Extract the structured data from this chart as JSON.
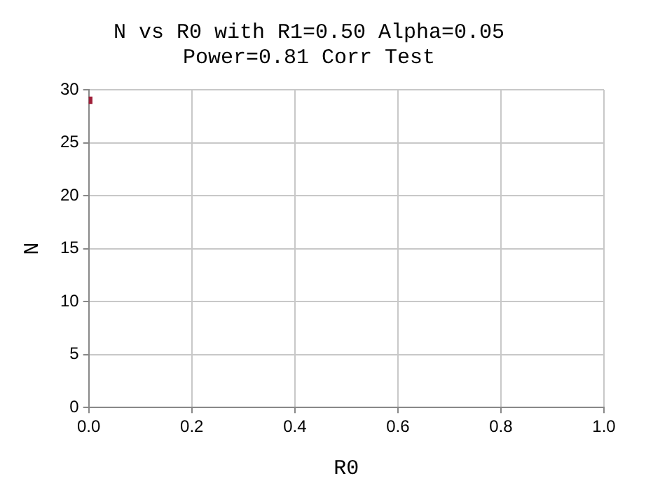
{
  "chart_data": {
    "type": "scatter",
    "title": "N vs R0 with R1=0.50 Alpha=0.05",
    "subtitle": "Power=0.81 Corr Test",
    "xlabel": "R0",
    "ylabel": "N",
    "series": [
      {
        "color": "#a0203a",
        "x": [
          0
        ],
        "values": [
          29
        ]
      }
    ],
    "xlim": [
      0,
      1
    ],
    "xticks": [
      {
        "value": 0,
        "label": "0.0"
      },
      {
        "value": 0.2,
        "label": "0.2"
      },
      {
        "value": 0.4,
        "label": "0.4"
      },
      {
        "value": 0.6,
        "label": "0.6"
      },
      {
        "value": 0.8,
        "label": "0.8"
      },
      {
        "value": 1,
        "label": "1.0"
      }
    ],
    "ylim": [
      0,
      30
    ],
    "yticks": [
      0,
      5,
      10,
      15,
      20,
      25,
      30
    ],
    "grid": true,
    "legend": false,
    "marker": "square"
  }
}
